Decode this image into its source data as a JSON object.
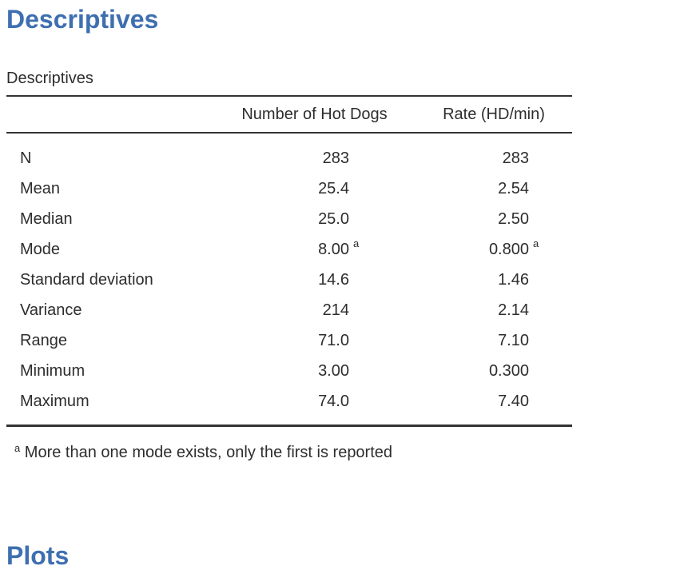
{
  "colors": {
    "heading": "#3e6fb0",
    "text": "#2d2d2d",
    "rule": "#333333"
  },
  "headings": {
    "top": "Descriptives",
    "bottom": "Plots"
  },
  "table": {
    "title": "Descriptives",
    "col_headers": {
      "col1": "Number of Hot Dogs",
      "col2": "Rate (HD/min)"
    },
    "rows": [
      {
        "label": "N",
        "col1": "283",
        "sup1": "",
        "col2": "283",
        "sup2": ""
      },
      {
        "label": "Mean",
        "col1": "25.4",
        "sup1": "",
        "col2": "2.54",
        "sup2": ""
      },
      {
        "label": "Median",
        "col1": "25.0",
        "sup1": "",
        "col2": "2.50",
        "sup2": ""
      },
      {
        "label": "Mode",
        "col1": "8.00",
        "sup1": "a",
        "col2": "0.800",
        "sup2": "a"
      },
      {
        "label": "Standard deviation",
        "col1": "14.6",
        "sup1": "",
        "col2": "1.46",
        "sup2": ""
      },
      {
        "label": "Variance",
        "col1": "214",
        "sup1": "",
        "col2": "2.14",
        "sup2": ""
      },
      {
        "label": "Range",
        "col1": "71.0",
        "sup1": "",
        "col2": "7.10",
        "sup2": ""
      },
      {
        "label": "Minimum",
        "col1": "3.00",
        "sup1": "",
        "col2": "0.300",
        "sup2": ""
      },
      {
        "label": "Maximum",
        "col1": "74.0",
        "sup1": "",
        "col2": "7.40",
        "sup2": ""
      }
    ],
    "footnote": {
      "marker": "a",
      "text": "More than one mode exists, only the first is reported"
    }
  }
}
